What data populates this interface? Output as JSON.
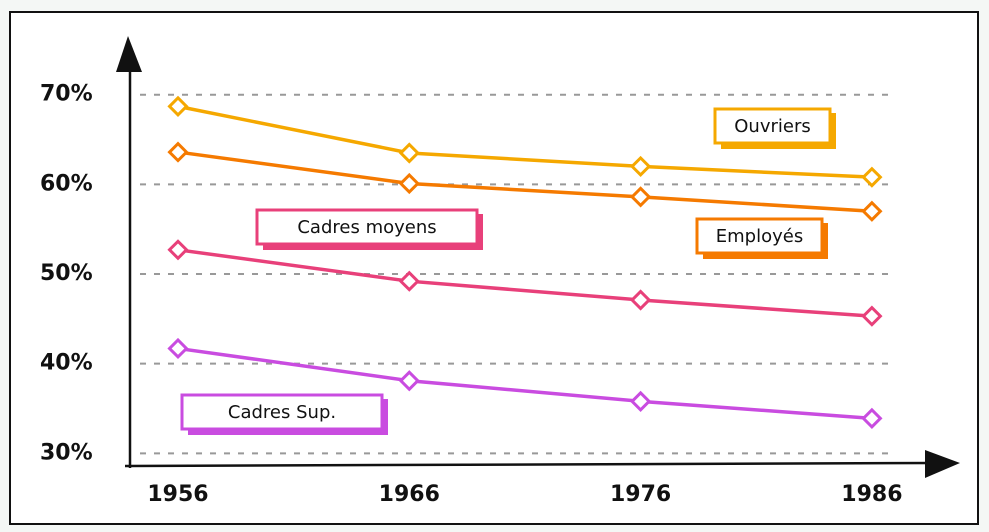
{
  "chart_data": {
    "type": "line",
    "categories": [
      "1956",
      "1966",
      "1976",
      "1986"
    ],
    "series": [
      {
        "name": "Ouvriers",
        "color": "#f5a800",
        "values": [
          68.7,
          63.5,
          62,
          60.8
        ]
      },
      {
        "name": "Employés",
        "color": "#f57a00",
        "values": [
          63.6,
          60.1,
          58.6,
          57
        ]
      },
      {
        "name": "Cadres moyens",
        "color": "#e8407a",
        "values": [
          52.7,
          49.2,
          47.1,
          45.3
        ]
      },
      {
        "name": "Cadres Sup.",
        "color": "#c94ce0",
        "values": [
          41.7,
          38.1,
          35.8,
          33.9
        ]
      }
    ],
    "ylim": [
      28.7,
      76.1
    ],
    "yticks": [
      {
        "value": 30,
        "label": "30%"
      },
      {
        "value": 40,
        "label": "40%"
      },
      {
        "value": 50,
        "label": "50%"
      },
      {
        "value": 60,
        "label": "60%"
      },
      {
        "value": 70,
        "label": "70%"
      }
    ],
    "grid": true
  }
}
